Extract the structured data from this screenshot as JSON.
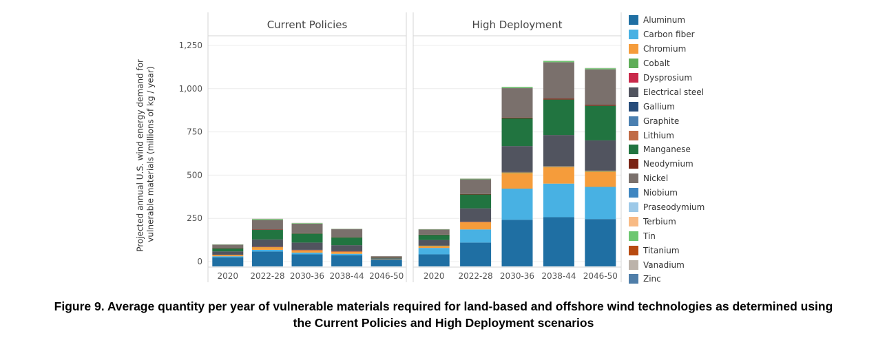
{
  "chart_data": {
    "type": "bar",
    "stacked": true,
    "ylabel": "Projected annual U.S. wind energy demand for vulnerable materials (millions of kg / year)",
    "ylim": [
      0,
      1250
    ],
    "yticks": [
      0,
      250,
      500,
      750,
      1000,
      1250
    ],
    "ytick_labels": [
      "0",
      "250",
      "500",
      "750",
      "1,000",
      "1,250"
    ],
    "grid": true,
    "legend_position": "right",
    "categories": [
      "2020",
      "2022-28",
      "2030-36",
      "2038-44",
      "2046-50"
    ],
    "materials": [
      "Aluminum",
      "Carbon fiber",
      "Chromium",
      "Cobalt",
      "Dysprosium",
      "Electrical steel",
      "Gallium",
      "Graphite",
      "Lithium",
      "Manganese",
      "Neodymium",
      "Nickel",
      "Niobium",
      "Praseodymium",
      "Terbium",
      "Tin",
      "Titanium",
      "Vanadium",
      "Zinc"
    ],
    "colors": [
      "#1f6fa3",
      "#48b1e3",
      "#f59c3b",
      "#5fae58",
      "#c9294a",
      "#51545f",
      "#274c7a",
      "#4a7fb0",
      "#c06a45",
      "#217440",
      "#7a2415",
      "#7a706c",
      "#3f86c1",
      "#9dc9e8",
      "#f8ba84",
      "#6dc770",
      "#b84a10",
      "#bcb3aa",
      "#4f7ea9"
    ],
    "panels": [
      {
        "title": "Current Policies",
        "series": [
          {
            "name": "Aluminum",
            "values": [
              25,
              58,
              42,
              36,
              10
            ]
          },
          {
            "name": "Carbon fiber",
            "values": [
              6,
              10,
              10,
              9,
              2
            ]
          },
          {
            "name": "Chromium",
            "values": [
              8,
              16,
              14,
              13,
              2
            ]
          },
          {
            "name": "Cobalt",
            "values": [
              0,
              1,
              1,
              1,
              0
            ]
          },
          {
            "name": "Dysprosium",
            "values": [
              0,
              1,
              1,
              1,
              0
            ]
          },
          {
            "name": "Electrical steel",
            "values": [
              20,
              42,
              42,
              35,
              5
            ]
          },
          {
            "name": "Gallium",
            "values": [
              0,
              0,
              0,
              0,
              0
            ]
          },
          {
            "name": "Graphite",
            "values": [
              0,
              0,
              0,
              0,
              0
            ]
          },
          {
            "name": "Lithium",
            "values": [
              0,
              0,
              0,
              0,
              0
            ]
          },
          {
            "name": "Manganese",
            "values": [
              18,
              55,
              52,
              45,
              3
            ]
          },
          {
            "name": "Neodymium",
            "values": [
              1,
              3,
              2,
              2,
              1
            ]
          },
          {
            "name": "Nickel",
            "values": [
              20,
              55,
              55,
              45,
              8
            ]
          },
          {
            "name": "Niobium",
            "values": [
              0,
              0,
              0,
              0,
              0
            ]
          },
          {
            "name": "Praseodymium",
            "values": [
              0,
              0,
              0,
              0,
              0
            ]
          },
          {
            "name": "Terbium",
            "values": [
              0,
              0,
              0,
              0,
              0
            ]
          },
          {
            "name": "Tin",
            "values": [
              1,
              5,
              3,
              2,
              0
            ]
          },
          {
            "name": "Titanium",
            "values": [
              0,
              0,
              0,
              0,
              0
            ]
          },
          {
            "name": "Vanadium",
            "values": [
              1,
              2,
              2,
              1,
              0
            ]
          },
          {
            "name": "Zinc",
            "values": [
              0,
              0,
              0,
              0,
              0
            ]
          }
        ]
      },
      {
        "title": "High Deployment",
        "series": [
          {
            "name": "Aluminum",
            "values": [
              42,
              110,
              242,
              257,
              246
            ]
          },
          {
            "name": "Carbon fiber",
            "values": [
              37,
              76,
              180,
              194,
              186
            ]
          },
          {
            "name": "Chromium",
            "values": [
              12,
              42,
              90,
              95,
              88
            ]
          },
          {
            "name": "Cobalt",
            "values": [
              1,
              2,
              4,
              4,
              4
            ]
          },
          {
            "name": "Dysprosium",
            "values": [
              0,
              1,
              2,
              2,
              2
            ]
          },
          {
            "name": "Electrical steel",
            "values": [
              33,
              77,
              150,
              180,
              175
            ]
          },
          {
            "name": "Gallium",
            "values": [
              0,
              0,
              0,
              0,
              0
            ]
          },
          {
            "name": "Graphite",
            "values": [
              0,
              0,
              0,
              0,
              0
            ]
          },
          {
            "name": "Lithium",
            "values": [
              0,
              0,
              0,
              0,
              0
            ]
          },
          {
            "name": "Manganese",
            "values": [
              30,
              80,
              160,
              205,
              200
            ]
          },
          {
            "name": "Neodymium",
            "values": [
              1,
              3,
              5,
              6,
              6
            ]
          },
          {
            "name": "Nickel",
            "values": [
              30,
              85,
              170,
              210,
              205
            ]
          },
          {
            "name": "Niobium",
            "values": [
              0,
              0,
              0,
              0,
              0
            ]
          },
          {
            "name": "Praseodymium",
            "values": [
              0,
              0,
              0,
              0,
              0
            ]
          },
          {
            "name": "Terbium",
            "values": [
              0,
              0,
              0,
              0,
              0
            ]
          },
          {
            "name": "Tin",
            "values": [
              1,
              3,
              6,
              7,
              6
            ]
          },
          {
            "name": "Titanium",
            "values": [
              0,
              0,
              0,
              0,
              0
            ]
          },
          {
            "name": "Vanadium",
            "values": [
              1,
              2,
              2,
              2,
              2
            ]
          },
          {
            "name": "Zinc",
            "values": [
              0,
              0,
              0,
              0,
              0
            ]
          }
        ]
      }
    ]
  },
  "caption": {
    "line1": "Figure 9. Average quantity per year of vulnerable materials required for land-based and offshore wind technologies as determined using",
    "line2": "the Current Policies and High Deployment scenarios"
  }
}
